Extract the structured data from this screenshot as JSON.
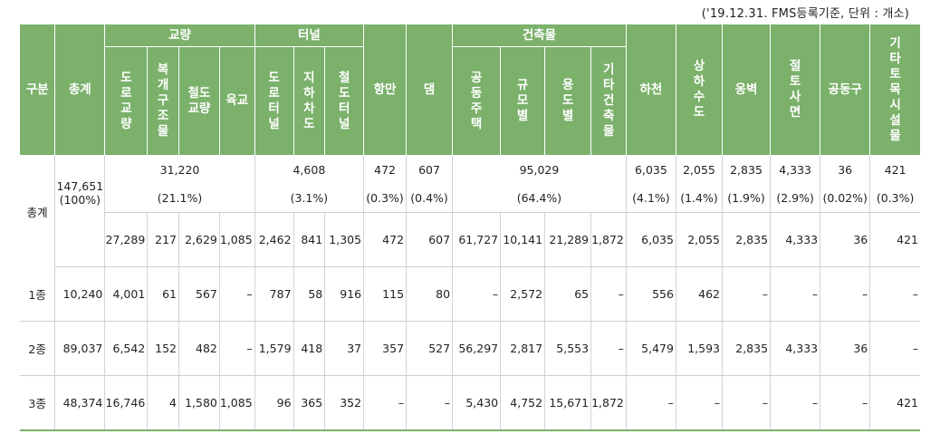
{
  "note": "('19.12.31. FMS등록기준, 단위 : 개소)",
  "headers": {
    "gubun": "구분",
    "total": "총계",
    "bridge": "교량",
    "tunnel": "터널",
    "harbor": "항만",
    "dam": "댐",
    "building": "건축물",
    "river": "하천",
    "water": "상하수도",
    "wall": "옹벽",
    "slope": "절토사면",
    "duct": "공동구",
    "other": "기타토목시설물",
    "road_bridge": "도로교량",
    "composite_bridge": "복개구조물",
    "rail_bridge": "철도교량",
    "land_bridge": "육교",
    "road_tunnel": "도로터널",
    "underpass": "지하차도",
    "rail_tunnel": "철도터널",
    "apartment": "공동주택",
    "by_scale": "규모별",
    "by_use": "용도별",
    "other_building": "기타건축물"
  },
  "summary": {
    "label": "총계",
    "total": "147,651",
    "total_pct": "(100%)",
    "bridge": "31,220",
    "bridge_pct": "(21.1%)",
    "tunnel": "4,608",
    "tunnel_pct": "(3.1%)",
    "harbor": "472",
    "harbor_pct": "(0.3%)",
    "dam": "607",
    "dam_pct": "(0.4%)",
    "building": "95,029",
    "building_pct": "(64.4%)",
    "river": "6,035",
    "river_pct": "(4.1%)",
    "water": "2,055",
    "water_pct": "(1.4%)",
    "wall": "2,835",
    "wall_pct": "(1.9%)",
    "slope": "4,333",
    "slope_pct": "(2.9%)",
    "duct": "36",
    "duct_pct": "(0.02%)",
    "other": "421",
    "other_pct": "(0.3%)"
  },
  "summary_detail": [
    "27,289",
    "217",
    "2,629",
    "1,085",
    "2,462",
    "841",
    "1,305",
    "472",
    "607",
    "61,727",
    "10,141",
    "21,289",
    "1,872",
    "6,035",
    "2,055",
    "2,835",
    "4,333",
    "36",
    "421"
  ],
  "rows": [
    {
      "label": "1종",
      "total": "10,240",
      "cells": [
        "4,001",
        "61",
        "567",
        "–",
        "787",
        "58",
        "916",
        "115",
        "80",
        "–",
        "2,572",
        "65",
        "–",
        "556",
        "462",
        "–",
        "–",
        "–",
        "–"
      ]
    },
    {
      "label": "2종",
      "total": "89,037",
      "cells": [
        "6,542",
        "152",
        "482",
        "–",
        "1,579",
        "418",
        "37",
        "357",
        "527",
        "56,297",
        "2,817",
        "5,553",
        "–",
        "5,479",
        "1,593",
        "2,835",
        "4,333",
        "36",
        "–"
      ]
    },
    {
      "label": "3종",
      "total": "48,374",
      "cells": [
        "16,746",
        "4",
        "1,580",
        "1,085",
        "96",
        "365",
        "352",
        "–",
        "–",
        "5,430",
        "4,752",
        "15,671",
        "1,872",
        "–",
        "–",
        "–",
        "–",
        "–",
        "421"
      ]
    }
  ]
}
